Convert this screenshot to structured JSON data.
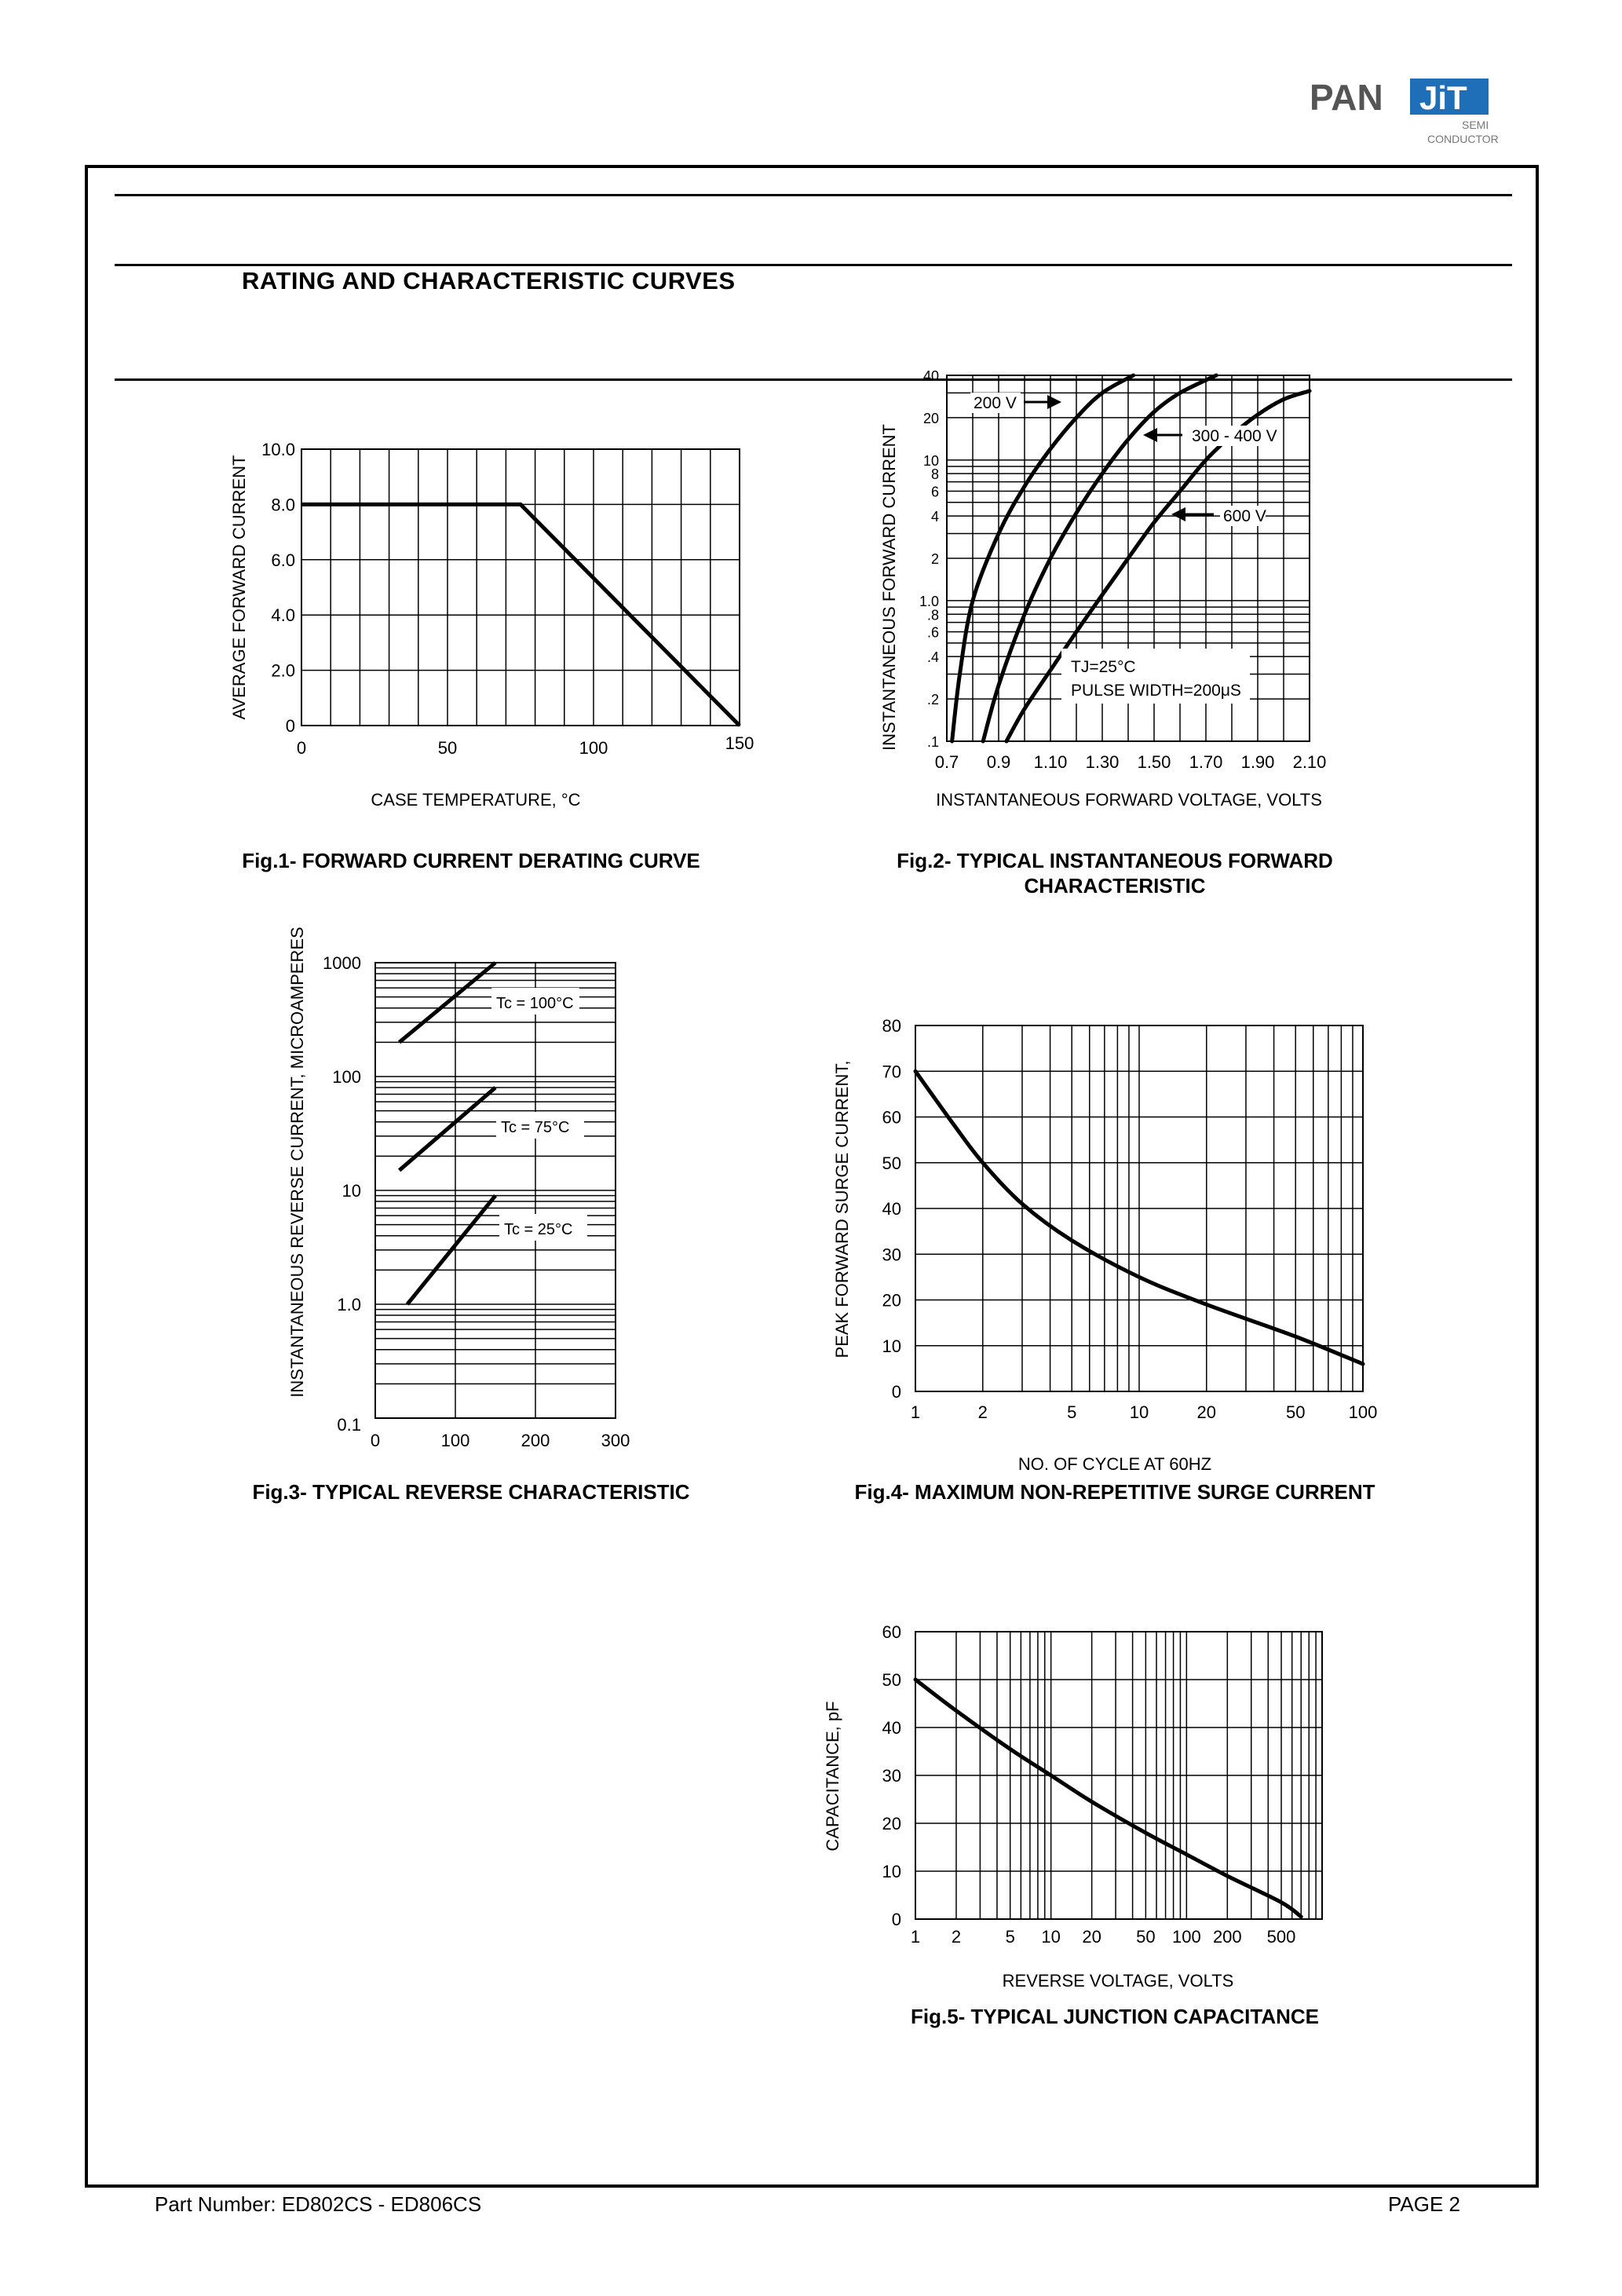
{
  "logo": {
    "brand_left": "PAN",
    "brand_right": "JiT",
    "sub_line1": "SEMI",
    "sub_line2": "CONDUCTOR",
    "accent": "#1f6fb8"
  },
  "heading": "RATING AND CHARACTERISTIC CURVES",
  "figures": {
    "fig1": {
      "caption": "Fig.1- FORWARD CURRENT DERATING CURVE"
    },
    "fig2": {
      "caption": "Fig.2- TYPICAL INSTANTANEOUS FORWARD\nCHARACTERISTIC"
    },
    "fig3": {
      "caption": "Fig.3- TYPICAL REVERSE CHARACTERISTIC"
    },
    "fig4": {
      "caption": "Fig.4- MAXIMUM NON-REPETITIVE SURGE CURRENT"
    },
    "fig5": {
      "caption": "Fig.5- TYPICAL JUNCTION CAPACITANCE"
    }
  },
  "chart_data": [
    {
      "id": "fig1",
      "type": "line",
      "xlabel": "CASE TEMPERATURE, °C",
      "ylabel": "AVERAGE FORWARD CURRENT",
      "xlim": [
        0,
        150
      ],
      "ylim": [
        0,
        10
      ],
      "x_ticks": [
        "0",
        "50",
        "100",
        "150"
      ],
      "y_ticks": [
        "0",
        "2.0",
        "4.0",
        "6.0",
        "8.0",
        "10.0"
      ],
      "grid": true,
      "series": [
        {
          "x": [
            0,
            75,
            150
          ],
          "y": [
            8,
            8,
            0
          ]
        }
      ]
    },
    {
      "id": "fig2",
      "type": "line",
      "xlabel": "INSTANTANEOUS FORWARD VOLTAGE, VOLTS",
      "ylabel": "INSTANTANEOUS FORWARD CURRENT",
      "xlim": [
        0.7,
        2.1
      ],
      "ylim": [
        0.1,
        40
      ],
      "yscale": "log",
      "x_ticks": [
        "0.7",
        "0.9",
        "1.10",
        "1.30",
        "1.50",
        "1.70",
        "1.90",
        "2.10"
      ],
      "y_ticks": [
        ".1",
        ".2",
        ".4",
        ".6",
        ".8",
        "1.0",
        "2",
        "4",
        "6",
        "8",
        "10",
        "20",
        "40"
      ],
      "grid": true,
      "annotations": [
        "200 V",
        "300 - 400 V",
        "600 V",
        "TJ=25°C",
        "PULSE WIDTH=200μS"
      ],
      "series": [
        {
          "name": "200 V",
          "x": [
            0.72,
            0.75,
            0.8,
            0.9,
            1.0,
            1.1,
            1.2,
            1.3,
            1.42
          ],
          "y": [
            0.1,
            0.3,
            1.0,
            3.0,
            6.5,
            12,
            20,
            30,
            40
          ]
        },
        {
          "name": "300 - 400 V",
          "x": [
            0.84,
            0.9,
            1.0,
            1.1,
            1.2,
            1.3,
            1.4,
            1.5,
            1.6,
            1.74
          ],
          "y": [
            0.1,
            0.25,
            0.8,
            2.0,
            4.2,
            8,
            14,
            22,
            30,
            40
          ]
        },
        {
          "name": "600 V",
          "x": [
            0.93,
            1.0,
            1.1,
            1.2,
            1.3,
            1.4,
            1.5,
            1.6,
            1.7,
            1.8,
            1.9,
            2.0,
            2.1
          ],
          "y": [
            0.1,
            0.17,
            0.32,
            0.6,
            1.1,
            2.0,
            3.6,
            6.0,
            10,
            15,
            21,
            27,
            31
          ]
        }
      ]
    },
    {
      "id": "fig3",
      "type": "line",
      "xlabel": "",
      "ylabel": "INSTANTANEOUS REVERSE CURRENT, MICROAMPERES",
      "xlim": [
        0,
        300
      ],
      "ylim": [
        0.1,
        1000
      ],
      "yscale": "log",
      "x_ticks": [
        "0",
        "100",
        "200",
        "300"
      ],
      "y_ticks": [
        "0.1",
        "1.0",
        "10",
        "100",
        "1000"
      ],
      "grid": true,
      "series": [
        {
          "name": "Tc = 100°C",
          "x": [
            30,
            150
          ],
          "y": [
            200,
            1000
          ]
        },
        {
          "name": "Tc = 75°C",
          "x": [
            30,
            150
          ],
          "y": [
            15,
            80
          ]
        },
        {
          "name": "Tc = 25°C",
          "x": [
            40,
            150
          ],
          "y": [
            1.0,
            9
          ]
        }
      ]
    },
    {
      "id": "fig4",
      "type": "line",
      "xlabel": "NO. OF CYCLE AT 60HZ",
      "ylabel": "PEAK FORWARD SURGE CURRENT,",
      "xlim": [
        1,
        100
      ],
      "ylim": [
        0,
        80
      ],
      "xscale": "log",
      "x_ticks": [
        "1",
        "2",
        "5",
        "10",
        "20",
        "50",
        "100"
      ],
      "y_ticks": [
        "0",
        "10",
        "20",
        "30",
        "40",
        "50",
        "60",
        "70",
        "80"
      ],
      "grid": true,
      "series": [
        {
          "x": [
            1,
            1.5,
            2,
            3,
            5,
            10,
            20,
            50,
            100
          ],
          "y": [
            70,
            58,
            50,
            41,
            33,
            25,
            19,
            12,
            6
          ]
        }
      ]
    },
    {
      "id": "fig5",
      "type": "line",
      "xlabel": "REVERSE VOLTAGE, VOLTS",
      "ylabel": "CAPACITANCE, pF",
      "xlim": [
        1,
        1000
      ],
      "ylim": [
        0,
        60
      ],
      "xscale": "log",
      "x_ticks": [
        "1",
        "2",
        "5",
        "10",
        "20",
        "50",
        "100",
        "200",
        "500"
      ],
      "y_ticks": [
        "0",
        "10",
        "20",
        "30",
        "40",
        "50",
        "60"
      ],
      "grid": true,
      "series": [
        {
          "x": [
            1,
            2,
            5,
            10,
            20,
            50,
            100,
            200,
            500,
            700
          ],
          "y": [
            50,
            43.5,
            35.5,
            30,
            24.5,
            18,
            13.5,
            9,
            3.5,
            0.5
          ]
        }
      ]
    }
  ],
  "footer": {
    "part_number": "Part Number: ED802CS - ED806CS",
    "page": "PAGE  2"
  }
}
